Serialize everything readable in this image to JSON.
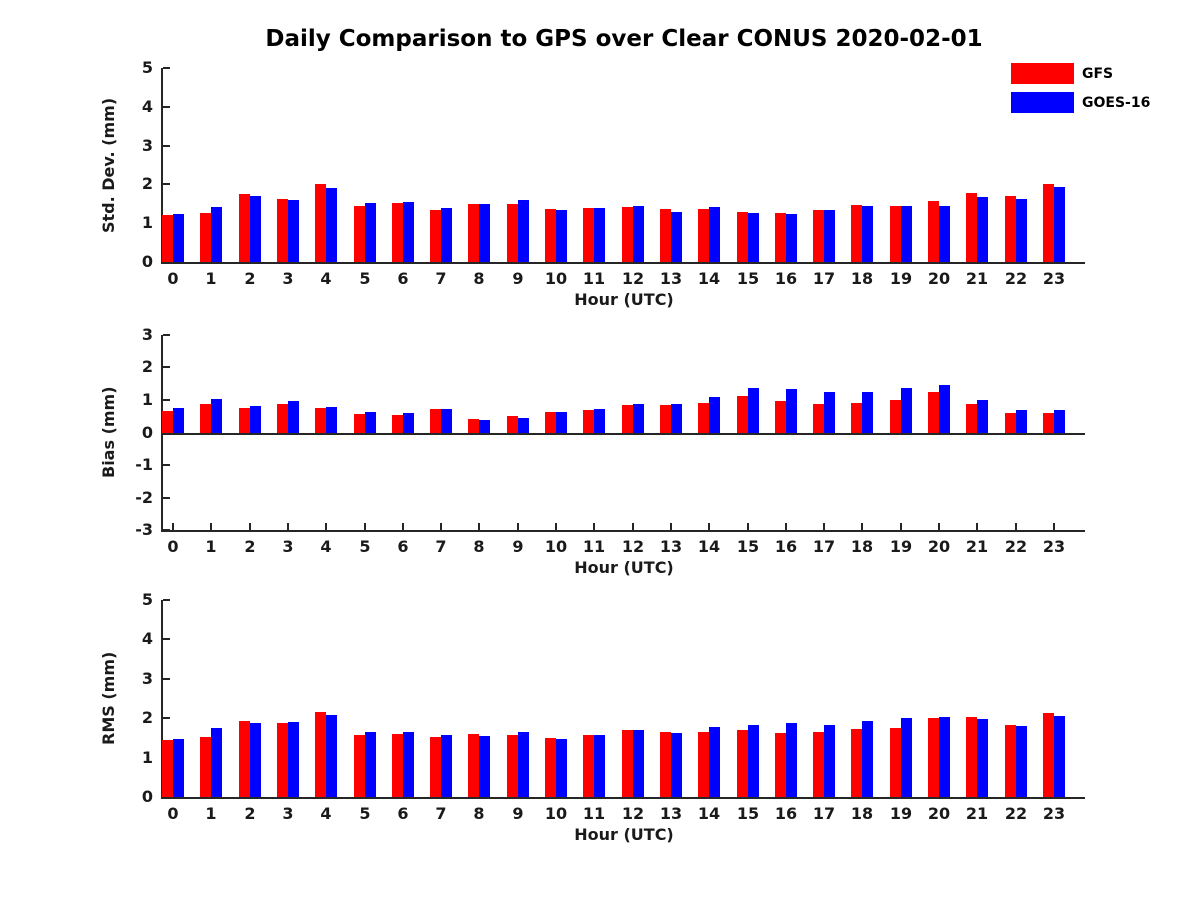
{
  "title": "Daily Comparison to GPS over Clear CONUS 2020-02-01",
  "legend": {
    "items": [
      {
        "label": "GFS",
        "color": "#ff0000"
      },
      {
        "label": "GOES-16",
        "color": "#0000ff"
      }
    ]
  },
  "colors": {
    "axis": "#262626",
    "text": "#1a1a1a",
    "gfs": "#ff0000",
    "goes16": "#0000ff"
  },
  "chart_data": [
    {
      "type": "bar",
      "panel": "std-dev",
      "ylabel": "Std. Dev. (mm)",
      "xlabel": "Hour (UTC)",
      "ylim": [
        0,
        5
      ],
      "yticks": [
        0,
        1,
        2,
        3,
        4,
        5
      ],
      "grid": false,
      "legend_position": "top-right",
      "categories": [
        0,
        1,
        2,
        3,
        4,
        5,
        6,
        7,
        8,
        9,
        10,
        11,
        12,
        13,
        14,
        15,
        16,
        17,
        18,
        19,
        20,
        21,
        22,
        23
      ],
      "series": [
        {
          "name": "GFS",
          "color": "#ff0000",
          "values": [
            1.22,
            1.27,
            1.76,
            1.63,
            2.01,
            1.45,
            1.51,
            1.34,
            1.5,
            1.5,
            1.36,
            1.4,
            1.43,
            1.37,
            1.36,
            1.29,
            1.25,
            1.33,
            1.46,
            1.44,
            1.56,
            1.79,
            1.7,
            2.0
          ]
        },
        {
          "name": "GOES-16",
          "color": "#0000ff",
          "values": [
            1.23,
            1.41,
            1.71,
            1.61,
            1.92,
            1.53,
            1.55,
            1.4,
            1.5,
            1.6,
            1.34,
            1.4,
            1.45,
            1.3,
            1.42,
            1.26,
            1.24,
            1.35,
            1.45,
            1.45,
            1.45,
            1.68,
            1.62,
            1.93
          ]
        }
      ]
    },
    {
      "type": "bar",
      "panel": "bias",
      "ylabel": "Bias (mm)",
      "xlabel": "Hour (UTC)",
      "ylim": [
        -3,
        3
      ],
      "yticks": [
        3,
        2,
        1,
        0,
        -1,
        -2,
        -3
      ],
      "zero_line": true,
      "grid": false,
      "categories": [
        0,
        1,
        2,
        3,
        4,
        5,
        6,
        7,
        8,
        9,
        10,
        11,
        12,
        13,
        14,
        15,
        16,
        17,
        18,
        19,
        20,
        21,
        22,
        23
      ],
      "series": [
        {
          "name": "GFS",
          "color": "#ff0000",
          "values": [
            0.68,
            0.88,
            0.76,
            0.9,
            0.78,
            0.58,
            0.54,
            0.74,
            0.44,
            0.51,
            0.66,
            0.71,
            0.85,
            0.86,
            0.92,
            1.14,
            0.98,
            0.88,
            0.91,
            1.02,
            1.25,
            0.88,
            0.62,
            0.61
          ]
        },
        {
          "name": "GOES-16",
          "color": "#0000ff",
          "values": [
            0.77,
            1.04,
            0.84,
            0.97,
            0.8,
            0.64,
            0.61,
            0.75,
            0.4,
            0.45,
            0.64,
            0.75,
            0.9,
            0.9,
            1.1,
            1.37,
            1.36,
            1.27,
            1.25,
            1.37,
            1.47,
            1.02,
            0.71,
            0.7
          ]
        }
      ]
    },
    {
      "type": "bar",
      "panel": "rms",
      "ylabel": "RMS (mm)",
      "xlabel": "Hour (UTC)",
      "ylim": [
        0,
        5
      ],
      "yticks": [
        0,
        1,
        2,
        3,
        4,
        5
      ],
      "grid": false,
      "categories": [
        0,
        1,
        2,
        3,
        4,
        5,
        6,
        7,
        8,
        9,
        10,
        11,
        12,
        13,
        14,
        15,
        16,
        17,
        18,
        19,
        20,
        21,
        22,
        23
      ],
      "series": [
        {
          "name": "GFS",
          "color": "#ff0000",
          "values": [
            1.44,
            1.53,
            1.93,
            1.88,
            2.15,
            1.58,
            1.61,
            1.52,
            1.59,
            1.58,
            1.51,
            1.58,
            1.69,
            1.64,
            1.65,
            1.71,
            1.62,
            1.64,
            1.72,
            1.76,
            2.0,
            2.03,
            1.82,
            2.13
          ]
        },
        {
          "name": "GOES-16",
          "color": "#0000ff",
          "values": [
            1.47,
            1.74,
            1.89,
            1.91,
            2.08,
            1.65,
            1.65,
            1.58,
            1.56,
            1.65,
            1.48,
            1.58,
            1.71,
            1.62,
            1.78,
            1.84,
            1.87,
            1.84,
            1.92,
            2.0,
            2.04,
            1.97,
            1.8,
            2.05
          ]
        }
      ]
    }
  ]
}
